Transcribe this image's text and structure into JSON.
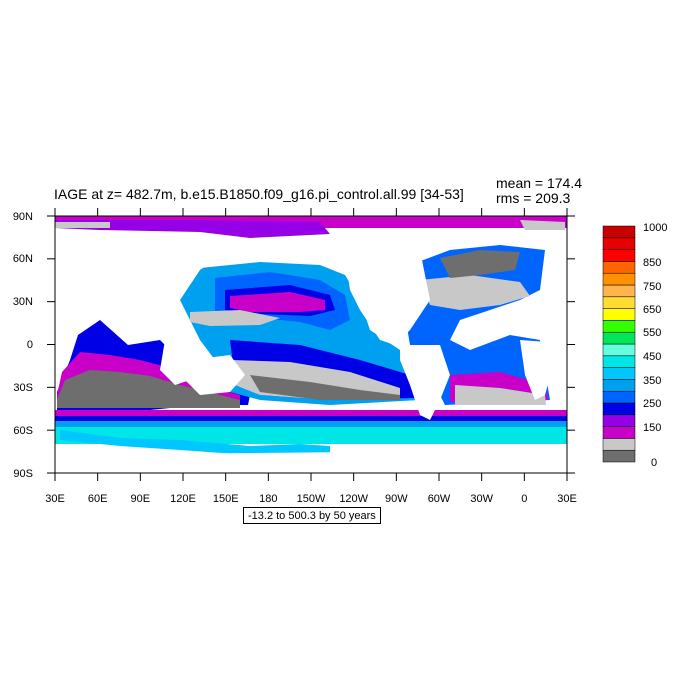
{
  "title": "IAGE at z= 482.7m, b.e15.B1850.f09_g16.pi_control.all.99 [34-53]",
  "stats": {
    "mean": "mean = 174.4",
    "rms": "rms = 209.3"
  },
  "axes": {
    "lat_ticks": [
      "90N",
      "60N",
      "30N",
      "0",
      "30S",
      "60S",
      "90S"
    ],
    "lon_ticks": [
      "30E",
      "60E",
      "90E",
      "120E",
      "150E",
      "180",
      "150W",
      "120W",
      "90W",
      "60W",
      "30W",
      "0",
      "30E"
    ]
  },
  "info_label": "-13.2 to 500.3 by 50 years",
  "colorbar": {
    "labels": [
      "1000",
      "850",
      "750",
      "650",
      "550",
      "450",
      "350",
      "250",
      "150",
      "0"
    ],
    "colors": [
      "#6e6e6e",
      "#c8c8c8",
      "#c800c8",
      "#9600e6",
      "#0000e6",
      "#0064ff",
      "#00a0f0",
      "#00c8ff",
      "#00e6e6",
      "#64ffdc",
      "#00e65a",
      "#32ff00",
      "#ffff00",
      "#ffdc32",
      "#ffb450",
      "#ff9000",
      "#ff6400",
      "#ff0000",
      "#e60000",
      "#c80000"
    ]
  },
  "palette": {
    "land": "#ffffff",
    "sea_ice": "#c8c8c8",
    "gray_dark": "#6e6e6e",
    "gray_light": "#c8c8c8",
    "magenta": "#c800c8",
    "purple": "#9600e6",
    "blue": "#0000e6",
    "blue_mid": "#0064ff",
    "light_blue": "#00a0f0",
    "sky": "#00c8ff",
    "cyan": "#00e6e6"
  }
}
